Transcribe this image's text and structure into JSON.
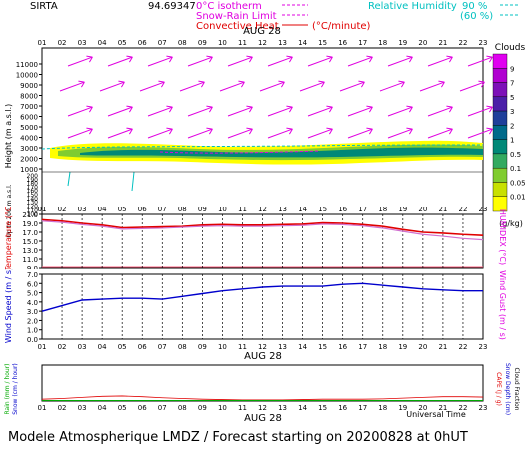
{
  "header": {
    "site": "SIRTA",
    "coords": "94.69347",
    "legend_iso": "0°C isotherm",
    "legend_snow": "Snow-Rain Limit",
    "legend_conv": "Convective Heat",
    "legend_conv_unit": "(°C/minute)",
    "legend_rh": "Relative Humidity",
    "rh_high": "90 %",
    "rh_low": "(60 %)"
  },
  "hours": [
    "01",
    "02",
    "03",
    "04",
    "05",
    "06",
    "07",
    "08",
    "09",
    "10",
    "11",
    "12",
    "13",
    "14",
    "15",
    "16",
    "17",
    "18",
    "19",
    "20",
    "21",
    "22",
    "23"
  ],
  "date_label": "AUG 28",
  "clouds_panel": {
    "ylabel": "Height (m a.s.l.)",
    "ylabel_lower": "Up to 200 m a.s.l.",
    "upper_ticks": [
      "11000",
      "10000",
      "9000",
      "8000",
      "7000",
      "6000",
      "5000",
      "4000",
      "3000",
      "2000",
      "1000"
    ],
    "lower_ticks": [
      "200",
      "190",
      "180",
      "170",
      "160",
      "150",
      "140",
      "130",
      "120",
      "110",
      "100"
    ],
    "colorbar_title": "Clouds",
    "colorbar_ticks": [
      "9",
      "7",
      "5",
      "3",
      "2",
      "1",
      "0.5",
      "0.1",
      "0.05",
      "0.01"
    ],
    "colorbar_unit": "(g/kg)",
    "colorbar_colors": [
      "#ffff00",
      "#c8e000",
      "#80cc30",
      "#33aa60",
      "#008877",
      "#006a8a",
      "#1f3f9a",
      "#4b1fa8",
      "#7d10b8",
      "#b000d0",
      "#e000f0"
    ]
  },
  "temp_panel": {
    "ylabel": "Temperature (°C)",
    "ylabel_right": "HUMIDEX (°C)",
    "ticks": [
      "21.0",
      "19.0",
      "17.0",
      "15.0",
      "13.0",
      "11.0",
      "9.0"
    ],
    "temp_color": "#e00000",
    "humidex_color": "#d070d0"
  },
  "wind_panel": {
    "ylabel": "Wind Speed (m / s)",
    "ylabel_right": "Wind Gust (m / s)",
    "ticks": [
      "7.0",
      "6.0",
      "5.0",
      "4.0",
      "3.0",
      "2.0",
      "1.0",
      "0.0"
    ],
    "color": "#0000cc"
  },
  "rain_panel": {
    "ylabel_rain": "Rain (mm / hour)",
    "ylabel_snow": "Snow (cm / hour)",
    "ylabel_capec": "CAPE (J / g)",
    "ylabel_depth": "Snow Depth (cm)",
    "ylabel_frac": "Cloud Fraction",
    "xlabel": "Universal Time"
  },
  "footer": "Modele Atmospherique LMDZ / Forecast starting on 20200828 at 0hUT",
  "chart_data": [
    {
      "type": "line",
      "title": "Temperature",
      "x": [
        "01",
        "02",
        "03",
        "04",
        "05",
        "06",
        "07",
        "08",
        "09",
        "10",
        "11",
        "12",
        "13",
        "14",
        "15",
        "16",
        "17",
        "18",
        "19",
        "20",
        "21",
        "22",
        "23"
      ],
      "ylim": [
        9.0,
        21.0
      ],
      "series": [
        {
          "name": "Temperature",
          "values": [
            19.8,
            19.5,
            19.0,
            18.6,
            18.0,
            18.1,
            18.2,
            18.3,
            18.6,
            18.7,
            18.6,
            18.6,
            18.7,
            18.8,
            19.1,
            19.0,
            18.7,
            18.3,
            17.6,
            17.0,
            16.8,
            16.5,
            16.3
          ]
        },
        {
          "name": "HUMIDEX",
          "values": [
            19.5,
            19.2,
            18.7,
            18.3,
            17.7,
            17.8,
            17.9,
            18.1,
            18.3,
            18.4,
            18.3,
            18.3,
            18.4,
            18.5,
            18.8,
            18.7,
            18.4,
            17.9,
            17.2,
            16.5,
            16.1,
            15.6,
            15.3
          ]
        }
      ]
    },
    {
      "type": "line",
      "title": "Wind Speed",
      "x": [
        "01",
        "02",
        "03",
        "04",
        "05",
        "06",
        "07",
        "08",
        "09",
        "10",
        "11",
        "12",
        "13",
        "14",
        "15",
        "16",
        "17",
        "18",
        "19",
        "20",
        "21",
        "22",
        "23"
      ],
      "ylim": [
        0.0,
        7.0
      ],
      "series": [
        {
          "name": "Wind Speed",
          "values": [
            3.0,
            3.6,
            4.2,
            4.3,
            4.4,
            4.4,
            4.3,
            4.6,
            4.9,
            5.2,
            5.4,
            5.6,
            5.7,
            5.7,
            5.7,
            5.9,
            6.0,
            5.8,
            5.6,
            5.4,
            5.3,
            5.2,
            5.2
          ]
        }
      ]
    },
    {
      "type": "line",
      "title": "Rain",
      "x": [
        "01",
        "02",
        "03",
        "04",
        "05",
        "06",
        "07",
        "08",
        "09",
        "10",
        "11",
        "12",
        "13",
        "14",
        "15",
        "16",
        "17",
        "18",
        "19",
        "20",
        "21",
        "22",
        "23"
      ],
      "series": [
        {
          "name": "CAPE",
          "values": [
            0.05,
            0.07,
            0.1,
            0.13,
            0.14,
            0.12,
            0.09,
            0.07,
            0.05,
            0.04,
            0.03,
            0.03,
            0.03,
            0.04,
            0.05,
            0.05,
            0.05,
            0.06,
            0.08,
            0.1,
            0.12,
            0.12,
            0.11
          ]
        },
        {
          "name": "Rain",
          "values": [
            0,
            0,
            0,
            0,
            0,
            0,
            0,
            0,
            0,
            0,
            0,
            0,
            0,
            0,
            0,
            0,
            0,
            0,
            0,
            0,
            0,
            0,
            0
          ]
        }
      ]
    }
  ]
}
